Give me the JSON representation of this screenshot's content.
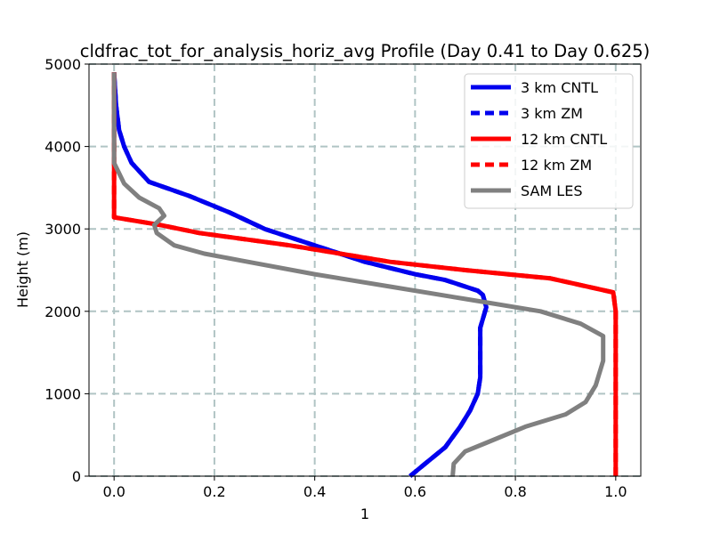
{
  "chart_data": {
    "type": "line",
    "title": "cldfrac_tot_for_analysis_horiz_avg Profile (Day 0.41 to Day 0.625)",
    "xlabel": "1",
    "ylabel": "Height (m)",
    "xlim": [
      -0.05,
      1.05
    ],
    "ylim": [
      0,
      5000
    ],
    "xticks": [
      0.0,
      0.2,
      0.4,
      0.6,
      0.8,
      1.0
    ],
    "xtick_labels": [
      "0.0",
      "0.2",
      "0.4",
      "0.6",
      "0.8",
      "1.0"
    ],
    "yticks": [
      0,
      1000,
      2000,
      3000,
      4000,
      5000
    ],
    "ytick_labels": [
      "0",
      "1000",
      "2000",
      "3000",
      "4000",
      "5000"
    ],
    "grid": true,
    "legend_position": "top-right",
    "series": [
      {
        "name": "3 km CNTL",
        "color": "#0000ee",
        "dash": "solid",
        "points": [
          [
            0.59,
            0
          ],
          [
            0.62,
            150
          ],
          [
            0.66,
            350
          ],
          [
            0.69,
            600
          ],
          [
            0.71,
            800
          ],
          [
            0.725,
            1000
          ],
          [
            0.73,
            1200
          ],
          [
            0.73,
            1500
          ],
          [
            0.73,
            1800
          ],
          [
            0.742,
            2050
          ],
          [
            0.735,
            2200
          ],
          [
            0.725,
            2250
          ],
          [
            0.66,
            2380
          ],
          [
            0.6,
            2450
          ],
          [
            0.5,
            2600
          ],
          [
            0.4,
            2800
          ],
          [
            0.3,
            3000
          ],
          [
            0.23,
            3200
          ],
          [
            0.15,
            3400
          ],
          [
            0.07,
            3570
          ],
          [
            0.035,
            3800
          ],
          [
            0.02,
            4000
          ],
          [
            0.01,
            4200
          ],
          [
            0.004,
            4500
          ],
          [
            0.001,
            4800
          ],
          [
            0,
            4900
          ]
        ]
      },
      {
        "name": "3 km ZM",
        "color": "#0000ee",
        "dash": "dashed",
        "points": [
          [
            0.59,
            0
          ],
          [
            0.62,
            150
          ],
          [
            0.66,
            350
          ],
          [
            0.69,
            600
          ],
          [
            0.71,
            800
          ],
          [
            0.725,
            1000
          ],
          [
            0.73,
            1200
          ],
          [
            0.73,
            1500
          ],
          [
            0.73,
            1800
          ],
          [
            0.742,
            2050
          ],
          [
            0.735,
            2200
          ],
          [
            0.725,
            2250
          ],
          [
            0.66,
            2380
          ],
          [
            0.6,
            2450
          ],
          [
            0.5,
            2600
          ],
          [
            0.4,
            2800
          ],
          [
            0.3,
            3000
          ],
          [
            0.23,
            3200
          ],
          [
            0.15,
            3400
          ],
          [
            0.07,
            3570
          ],
          [
            0.035,
            3800
          ],
          [
            0.02,
            4000
          ],
          [
            0.01,
            4200
          ],
          [
            0.004,
            4500
          ],
          [
            0.001,
            4800
          ],
          [
            0,
            4900
          ]
        ]
      },
      {
        "name": "12 km CNTL",
        "color": "#ff0000",
        "dash": "solid",
        "points": [
          [
            1.0,
            0
          ],
          [
            1.0,
            500
          ],
          [
            1.0,
            1000
          ],
          [
            1.0,
            1500
          ],
          [
            1.0,
            2000
          ],
          [
            0.995,
            2230
          ],
          [
            0.87,
            2400
          ],
          [
            0.7,
            2500
          ],
          [
            0.55,
            2600
          ],
          [
            0.35,
            2800
          ],
          [
            0.17,
            2950
          ],
          [
            0.09,
            3050
          ],
          [
            0,
            3140
          ],
          [
            0,
            3500
          ],
          [
            0,
            4000
          ],
          [
            0,
            4500
          ],
          [
            0,
            4900
          ]
        ]
      },
      {
        "name": "12 km ZM",
        "color": "#ff0000",
        "dash": "dashed",
        "points": [
          [
            1.0,
            0
          ],
          [
            1.0,
            500
          ],
          [
            1.0,
            1000
          ],
          [
            1.0,
            1500
          ],
          [
            1.0,
            2000
          ],
          [
            0.995,
            2230
          ],
          [
            0.87,
            2400
          ],
          [
            0.7,
            2500
          ],
          [
            0.55,
            2600
          ],
          [
            0.35,
            2800
          ],
          [
            0.17,
            2950
          ],
          [
            0.09,
            3050
          ],
          [
            0,
            3140
          ],
          [
            0,
            3500
          ],
          [
            0,
            4000
          ],
          [
            0,
            4500
          ],
          [
            0,
            4900
          ]
        ]
      },
      {
        "name": "SAM LES",
        "color": "#808080",
        "dash": "solid",
        "points": [
          [
            0.675,
            0
          ],
          [
            0.677,
            150
          ],
          [
            0.7,
            300
          ],
          [
            0.74,
            400
          ],
          [
            0.82,
            600
          ],
          [
            0.9,
            750
          ],
          [
            0.94,
            900
          ],
          [
            0.96,
            1100
          ],
          [
            0.975,
            1400
          ],
          [
            0.975,
            1700
          ],
          [
            0.93,
            1850
          ],
          [
            0.85,
            2000
          ],
          [
            0.7,
            2150
          ],
          [
            0.55,
            2300
          ],
          [
            0.4,
            2450
          ],
          [
            0.25,
            2620
          ],
          [
            0.18,
            2700
          ],
          [
            0.12,
            2800
          ],
          [
            0.085,
            2950
          ],
          [
            0.08,
            3050
          ],
          [
            0.1,
            3160
          ],
          [
            0.09,
            3250
          ],
          [
            0.05,
            3380
          ],
          [
            0.02,
            3550
          ],
          [
            0,
            3800
          ],
          [
            0,
            4000
          ],
          [
            0,
            4500
          ],
          [
            0,
            4900
          ]
        ]
      }
    ]
  }
}
